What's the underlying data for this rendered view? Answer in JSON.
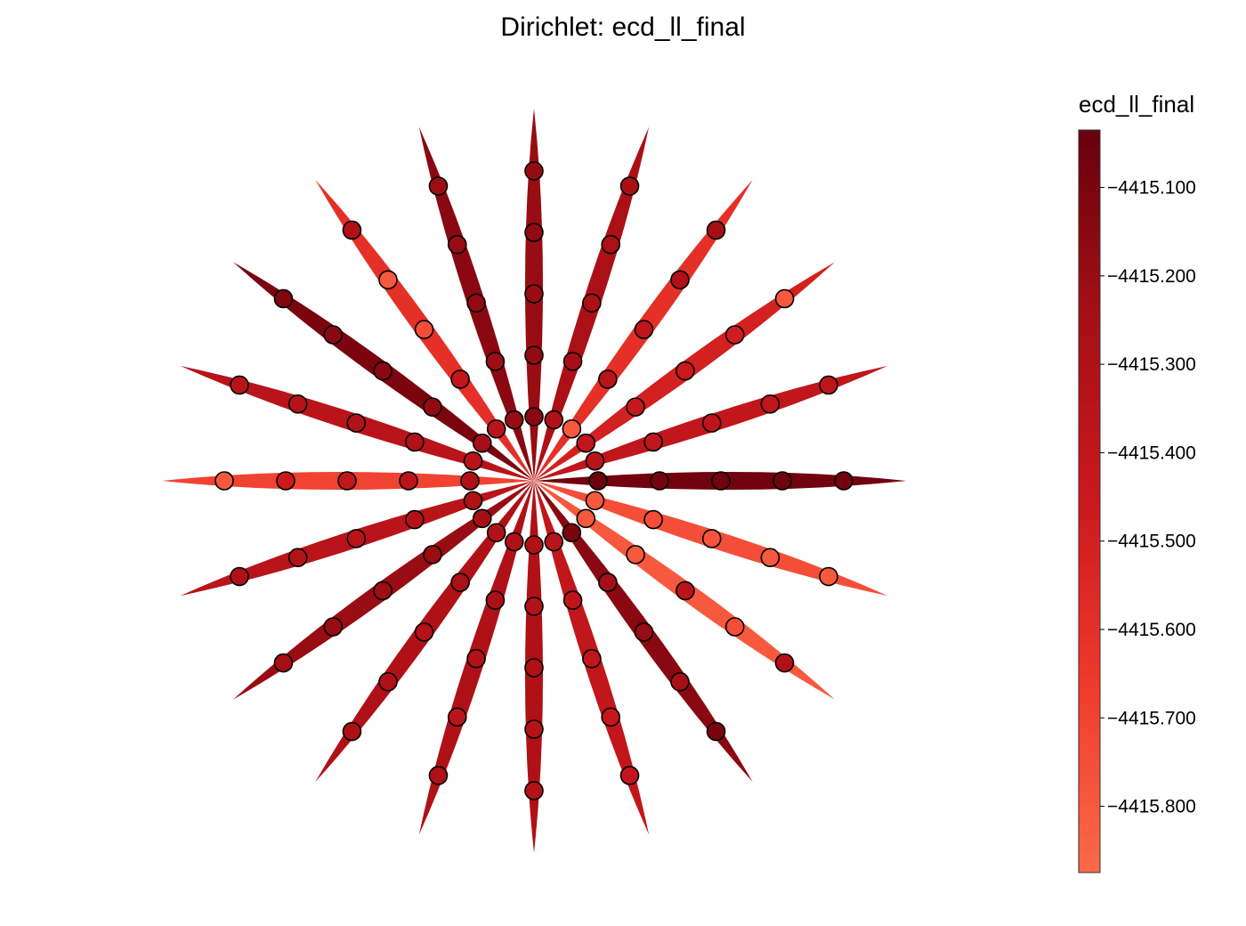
{
  "chart_data": {
    "type": "radial-petal-scatter",
    "title": "Dirichlet: ecd_ll_final",
    "colorbar": {
      "label": "ecd_ll_final",
      "min": -4415.875,
      "max": -4415.035,
      "ticks": [
        -4415.1,
        -4415.2,
        -4415.3,
        -4415.4,
        -4415.5,
        -4415.6,
        -4415.7,
        -4415.8
      ],
      "tick_labels": [
        "−4415.100",
        "−4415.200",
        "−4415.300",
        "−4415.400",
        "−4415.500",
        "−4415.600",
        "−4415.700",
        "−4415.800"
      ],
      "colors": [
        "#fb6a4a",
        "#ef3b2c",
        "#cb181d",
        "#a50f15",
        "#67000d"
      ]
    },
    "grid": false,
    "axes_visible": false,
    "spokes": [
      {
        "angle": 0,
        "value": -4415.07,
        "points": [
          -4415.05,
          -4415.08,
          -4415.07,
          -4415.06,
          -4415.07
        ]
      },
      {
        "angle": 18,
        "value": -4415.4,
        "points": [
          -4415.35,
          -4415.4,
          -4415.38,
          -4415.4,
          -4415.38
        ]
      },
      {
        "angle": 36,
        "value": -4415.5,
        "points": [
          -4415.4,
          -4415.42,
          -4415.45,
          -4415.48,
          -4415.8
        ]
      },
      {
        "angle": 54,
        "value": -4415.6,
        "points": [
          -4415.8,
          -4415.35,
          -4415.38,
          -4415.3,
          -4415.25
        ]
      },
      {
        "angle": 72,
        "value": -4415.28,
        "points": [
          -4415.3,
          -4415.25,
          -4415.27,
          -4415.28,
          -4415.26
        ]
      },
      {
        "angle": 90,
        "value": -4415.2,
        "points": [
          -4415.15,
          -4415.18,
          -4415.2,
          -4415.18,
          -4415.19
        ]
      },
      {
        "angle": 108,
        "value": -4415.15,
        "points": [
          -4415.2,
          -4415.22,
          -4415.18,
          -4415.2,
          -4415.22
        ]
      },
      {
        "angle": 126,
        "value": -4415.6,
        "points": [
          -4415.35,
          -4415.4,
          -4415.75,
          -4415.8,
          -4415.3
        ]
      },
      {
        "angle": 144,
        "value": -4415.1,
        "points": [
          -4415.25,
          -4415.18,
          -4415.15,
          -4415.15,
          -4415.12
        ]
      },
      {
        "angle": 162,
        "value": -4415.35,
        "points": [
          -4415.35,
          -4415.3,
          -4415.32,
          -4415.33,
          -4415.35
        ]
      },
      {
        "angle": 180,
        "value": -4415.7,
        "points": [
          -4415.3,
          -4415.35,
          -4415.4,
          -4415.45,
          -4415.8
        ]
      },
      {
        "angle": 198,
        "value": -4415.35,
        "points": [
          -4415.3,
          -4415.32,
          -4415.35,
          -4415.33,
          -4415.3
        ]
      },
      {
        "angle": 216,
        "value": -4415.2,
        "points": [
          -4415.25,
          -4415.2,
          -4415.22,
          -4415.2,
          -4415.25
        ]
      },
      {
        "angle": 234,
        "value": -4415.3,
        "points": [
          -4415.3,
          -4415.28,
          -4415.32,
          -4415.3,
          -4415.28
        ]
      },
      {
        "angle": 252,
        "value": -4415.3,
        "points": [
          -4415.3,
          -4415.28,
          -4415.32,
          -4415.35,
          -4415.3
        ]
      },
      {
        "angle": 270,
        "value": -4415.3,
        "points": [
          -4415.3,
          -4415.32,
          -4415.3,
          -4415.33,
          -4415.32
        ]
      },
      {
        "angle": 288,
        "value": -4415.4,
        "points": [
          -4415.35,
          -4415.38,
          -4415.4,
          -4415.42,
          -4415.4
        ]
      },
      {
        "angle": 306,
        "value": -4415.15,
        "points": [
          -4415.1,
          -4415.25,
          -4415.2,
          -4415.25,
          -4415.1
        ]
      },
      {
        "angle": 324,
        "value": -4415.8,
        "points": [
          -4415.8,
          -4415.8,
          -4415.35,
          -4415.75,
          -4415.3
        ]
      },
      {
        "angle": 342,
        "value": -4415.75,
        "points": [
          -4415.8,
          -4415.75,
          -4415.78,
          -4415.8,
          -4415.8
        ]
      }
    ]
  }
}
